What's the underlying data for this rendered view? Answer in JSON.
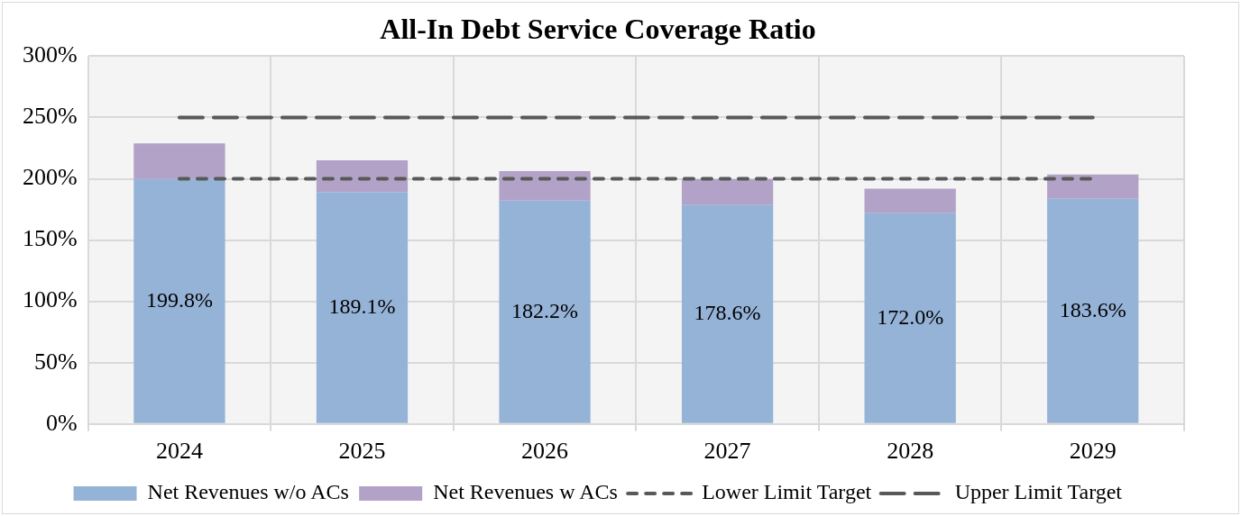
{
  "chart_data": {
    "type": "bar",
    "title": "All-In Debt Service Coverage Ratio",
    "categories": [
      "2024",
      "2025",
      "2026",
      "2027",
      "2028",
      "2029"
    ],
    "stacked": true,
    "series": [
      {
        "name": "Net Revenues w/o ACs",
        "color": "#95b3d7",
        "values": [
          199.8,
          189.1,
          182.2,
          178.6,
          172.0,
          183.6
        ],
        "value_labels": [
          "199.8%",
          "189.1%",
          "182.2%",
          "178.6%",
          "172.0%",
          "183.6%"
        ]
      },
      {
        "name": "Net Revenues w ACs",
        "color": "#b3a2c7",
        "values": [
          29,
          26,
          24,
          21,
          20,
          20
        ]
      },
      {
        "name": "Lower Limit Target",
        "type": "line",
        "color": "#595959",
        "line_style": "dashed",
        "values": [
          200,
          200,
          200,
          200,
          200,
          200
        ]
      },
      {
        "name": "Upper Limit Target",
        "type": "line",
        "color": "#595959",
        "line_style": "dashed",
        "values": [
          250,
          250,
          250,
          250,
          250,
          250
        ]
      }
    ],
    "ylim": [
      0,
      300
    ],
    "yticks": [
      {
        "value": 0,
        "label": "0%"
      },
      {
        "value": 50,
        "label": "50%"
      },
      {
        "value": 100,
        "label": "100%"
      },
      {
        "value": 150,
        "label": "150%"
      },
      {
        "value": 200,
        "label": "200%"
      },
      {
        "value": 250,
        "label": "250%"
      },
      {
        "value": 300,
        "label": "300%"
      }
    ],
    "grid": true,
    "legend": "bottom",
    "marker": "none"
  }
}
